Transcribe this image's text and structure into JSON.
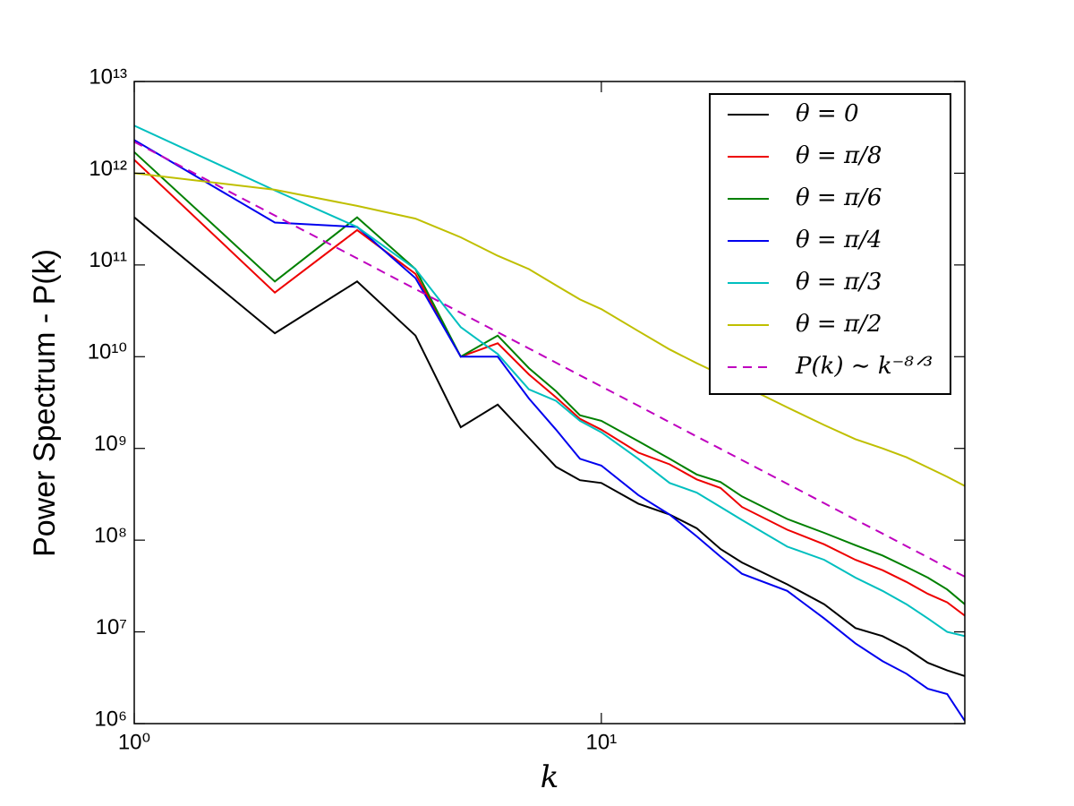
{
  "chart_data": {
    "type": "line",
    "xlabel": "k",
    "ylabel": "Power Spectrum - P(k)",
    "xscale": "log",
    "yscale": "log",
    "legend": "upper right",
    "xlim": [
      1,
      60
    ],
    "ylim": [
      1000000,
      10000000000000
    ],
    "xticks": [
      {
        "value": 1,
        "label": "10⁰"
      },
      {
        "value": 10,
        "label": "10¹"
      }
    ],
    "yticks": [
      {
        "value": 1000000,
        "label": "10⁶"
      },
      {
        "value": 10000000,
        "label": "10⁷"
      },
      {
        "value": 100000000,
        "label": "10⁸"
      },
      {
        "value": 1000000000,
        "label": "10⁹"
      },
      {
        "value": 10000000000,
        "label": "10¹⁰"
      },
      {
        "value": 100000000000,
        "label": "10¹¹"
      },
      {
        "value": 1000000000000,
        "label": "10¹²"
      },
      {
        "value": 10000000000000,
        "label": "10¹³"
      }
    ],
    "x": [
      1,
      2,
      3,
      4,
      5,
      6,
      7,
      8,
      9,
      10,
      12,
      14,
      16,
      18,
      20,
      25,
      30,
      35,
      40,
      45,
      50,
      55,
      60
    ],
    "series": [
      {
        "name": "θ = 0",
        "color": "#000000",
        "linestyle": "solid",
        "values": [
          330000000000,
          18000000000,
          66000000000,
          17000000000,
          1700000000,
          3000000000,
          1300000000,
          630000000,
          450000000,
          420000000,
          250000000,
          190000000,
          135000000,
          80000000,
          57000000,
          33000000,
          20000000,
          11000000,
          9000000,
          6600000,
          4600000,
          3800000,
          3300000
        ]
      },
      {
        "name": "θ = π/8",
        "color": "#ee0000",
        "linestyle": "solid",
        "values": [
          1400000000000,
          50000000000,
          240000000000,
          80000000000,
          10000000000,
          14000000000,
          6400000000,
          3600000000,
          2100000000,
          1600000000,
          900000000,
          670000000,
          460000000,
          370000000,
          230000000,
          130000000,
          90000000,
          61000000,
          47000000,
          35000000,
          26000000,
          21000000,
          15000000
        ]
      },
      {
        "name": "θ = π/6",
        "color": "#008000",
        "linestyle": "solid",
        "values": [
          1700000000000,
          66000000000,
          330000000000,
          90000000000,
          10000000000,
          17000000000,
          7500000000,
          4200000000,
          2300000000,
          2000000000,
          1200000000,
          770000000,
          520000000,
          430000000,
          300000000,
          170000000,
          120000000,
          88000000,
          68000000,
          51000000,
          39000000,
          29000000,
          20000000
        ]
      },
      {
        "name": "θ = π/4",
        "color": "#0000ee",
        "linestyle": "solid",
        "values": [
          2300000000000,
          290000000000,
          260000000000,
          72000000000,
          10000000000,
          10000000000,
          3500000000,
          1600000000,
          770000000,
          650000000,
          310000000,
          190000000,
          110000000,
          66000000,
          43000000,
          28000000,
          14000000,
          7500000,
          4800000,
          3500000,
          2400000,
          2100000,
          1070000
        ]
      },
      {
        "name": "θ = π/3",
        "color": "#00bfbf",
        "linestyle": "solid",
        "values": [
          3300000000000,
          650000000000,
          260000000000,
          90000000000,
          21000000000,
          10700000000,
          4400000000,
          3300000000,
          2000000000,
          1500000000,
          770000000,
          420000000,
          330000000,
          230000000,
          166000000,
          85000000,
          61000000,
          39000000,
          28000000,
          20000000,
          14000000,
          10000000,
          9000000
        ]
      },
      {
        "name": "θ = π/2",
        "color": "#bfbf00",
        "linestyle": "solid",
        "values": [
          1000000000000,
          660000000000,
          440000000000,
          320000000000,
          200000000000,
          126000000000,
          90000000000,
          60000000000,
          42000000000,
          33000000000,
          19000000000,
          12000000000,
          8500000000,
          6400000000,
          4900000000,
          2800000000,
          1800000000,
          1260000000,
          1000000000,
          800000000,
          620000000,
          490000000,
          390000000
        ]
      },
      {
        "name": "P(k) ∼ k⁻⁸ᐟ³",
        "color": "#bf00bf",
        "linestyle": "dashed",
        "values": [
          2200000000000,
          346000000000,
          118000000000,
          54600000000,
          30100000000,
          18500000000,
          12300000000,
          8600000000,
          6270000000,
          4740000000,
          2920000000,
          1930000000,
          1350000000,
          990000000,
          747000000,
          412000000,
          253000000,
          167000000,
          118000000,
          86000000,
          65000000,
          50000000,
          40000000
        ]
      }
    ]
  }
}
